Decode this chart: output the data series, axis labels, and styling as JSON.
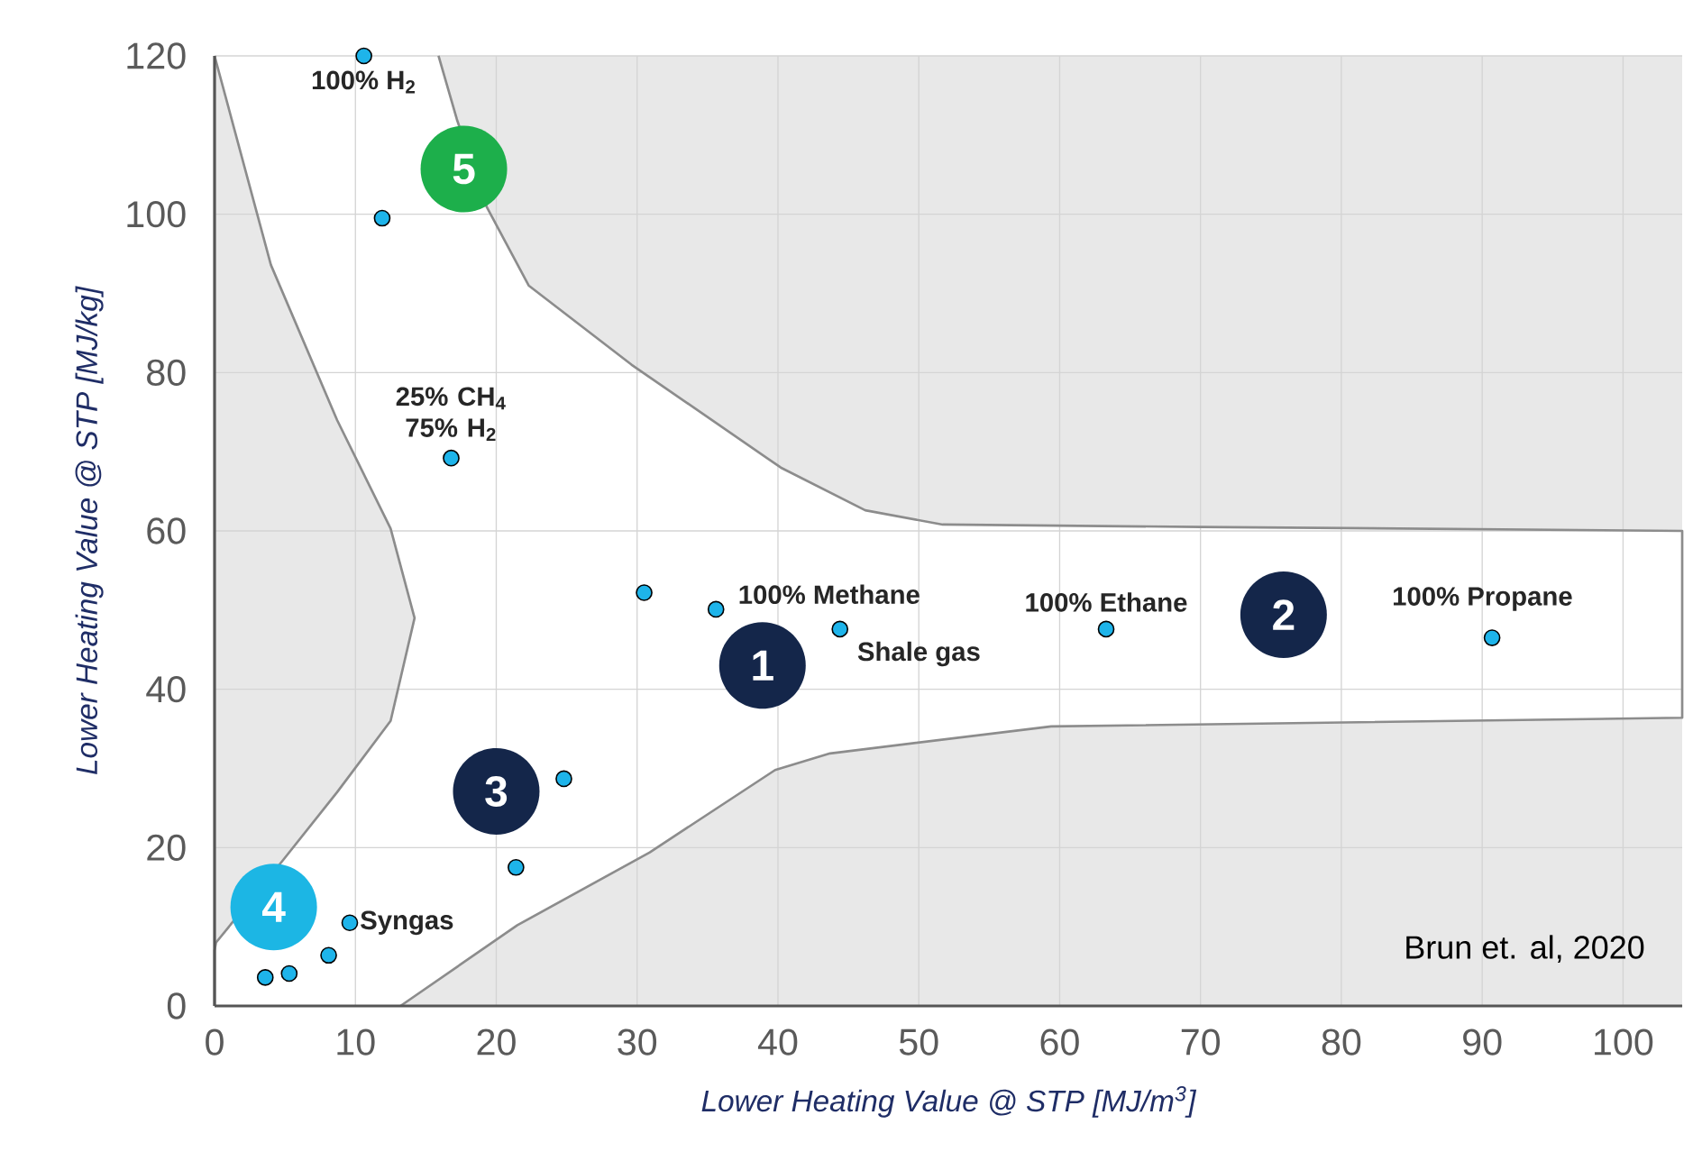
{
  "chart_data": {
    "type": "scatter",
    "xlabel": "Lower Heating Value @ STP [MJ/m$^{3}$]",
    "ylabel": "Lower Heating Value @ STP [MJ/kg]",
    "xlim": [
      0,
      104.2
    ],
    "ylim": [
      0,
      120
    ],
    "xticks": [
      0,
      10,
      20,
      30,
      40,
      50,
      60,
      70,
      80,
      90,
      100
    ],
    "yticks": [
      0,
      20,
      40,
      60,
      80,
      100,
      120
    ],
    "grid": true,
    "series": [
      {
        "type": "line",
        "color": "#8c8c8c",
        "line_style": "solid",
        "x": [
          0,
          4.0,
          8.7,
          12.5,
          14.2,
          12.5,
          8.7,
          4.9,
          0.1,
          0,
          0
        ],
        "values": [
          120,
          93.6,
          74,
          60.3,
          49,
          36,
          27,
          18.5,
          8,
          7,
          0
        ]
      },
      {
        "type": "line",
        "color": "#8c8c8c",
        "line_style": "solid",
        "x": [
          15.9,
          17.2,
          19.3,
          22.3,
          29.6,
          40.2,
          46.2,
          51.7,
          70,
          104.2,
          104.2,
          59.4,
          43.7,
          39.8,
          30.9,
          21.5,
          13.2
        ],
        "values": [
          120,
          112,
          101,
          91,
          81,
          68,
          62.6,
          60.8,
          60.5,
          60,
          36.4,
          35.3,
          31.9,
          29.8,
          19.4,
          10.2,
          0
        ]
      },
      {
        "color": "#1eb4ea",
        "marker": "circle",
        "x": [
          10.6,
          11.9,
          16.8,
          30.5,
          35.6,
          44.4,
          63.3,
          90.7,
          24.8,
          21.4,
          9.6,
          8.1,
          5.3,
          3.6
        ],
        "values": [
          120,
          99.5,
          69.2,
          52.2,
          50.1,
          47.6,
          47.6,
          46.5,
          28.7,
          17.5,
          10.5,
          6.4,
          4.1,
          3.6
        ]
      }
    ],
    "annotations": [
      {
        "text": "100% H$_{2}$",
        "x": 10.6,
        "y": 120
      },
      {
        "text": "25% CH$_{4}$ 75% H$_{2}$",
        "x": 16.8,
        "y": 69.2
      },
      {
        "text": "100% Methane",
        "x": 35.6,
        "y": 50.1
      },
      {
        "text": "Shale gas",
        "x": 44.4,
        "y": 47.6
      },
      {
        "text": "100% Ethane",
        "x": 63.3,
        "y": 47.6
      },
      {
        "text": "100% Propane",
        "x": 90.7,
        "y": 46.5
      },
      {
        "text": "Syngas",
        "x": 9.6,
        "y": 10.5
      },
      "1",
      "2",
      "3",
      "4",
      "5",
      "Brun et. al, 2020"
    ]
  }
}
